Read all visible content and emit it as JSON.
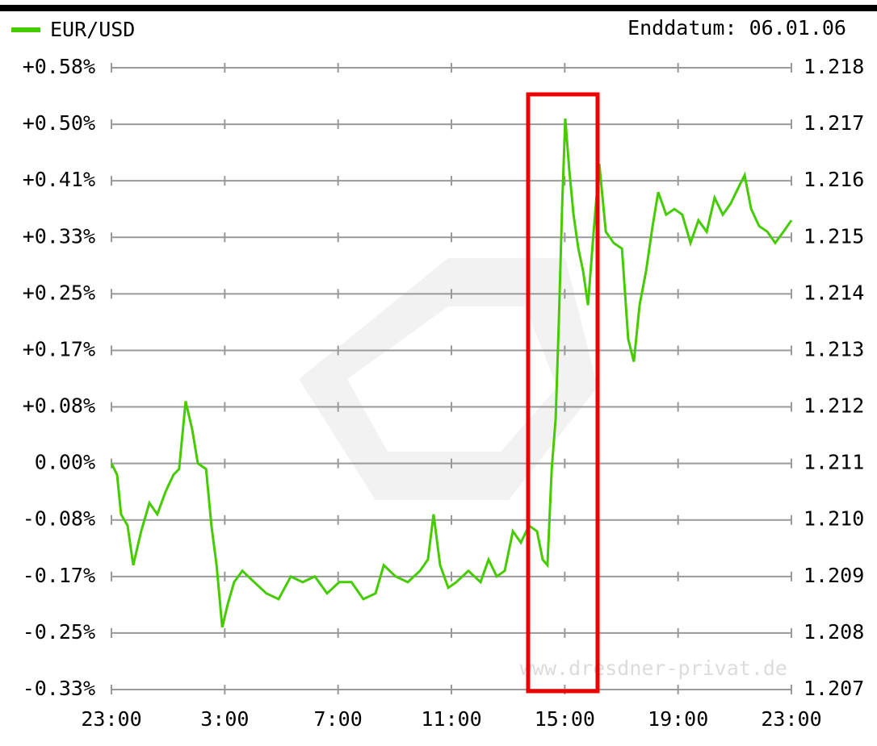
{
  "chart_data": {
    "type": "line",
    "annotations": [
      "Enddatum: 06.01.06",
      "www.dresdner-privat.de"
    ],
    "x": [
      0,
      0.2,
      0.34,
      0.57,
      0.77,
      1.05,
      1.34,
      1.62,
      1.91,
      2.19,
      2.39,
      2.62,
      2.85,
      3.05,
      3.34,
      3.53,
      3.71,
      3.91,
      4.1,
      4.33,
      4.62,
      5.04,
      5.47,
      5.9,
      6.33,
      6.75,
      7.18,
      7.61,
      8.04,
      8.47,
      8.89,
      9.32,
      9.61,
      10.03,
      10.46,
      10.89,
      11.17,
      11.37,
      11.6,
      11.89,
      12.17,
      12.6,
      13.03,
      13.31,
      13.6,
      13.88,
      14.17,
      14.45,
      14.74,
      15.02,
      15.22,
      15.39,
      15.54,
      15.68,
      15.79,
      15.91,
      16.02,
      16.16,
      16.31,
      16.48,
      16.65,
      16.82,
      17.02,
      17.22,
      17.45,
      17.73,
      18.02,
      18.24,
      18.44,
      18.64,
      18.87,
      19.1,
      19.3,
      19.58,
      19.87,
      20.15,
      20.44,
      20.72,
      21.01,
      21.29,
      21.58,
      21.86,
      22.15,
      22.35,
      22.58,
      22.86,
      23.15,
      23.43,
      23.72,
      24
    ],
    "series": [
      {
        "name": "EUR/USD",
        "color": "#44cc00",
        "values": [
          1.211,
          1.2108,
          1.2101,
          1.2099,
          1.2092,
          1.2098,
          1.2103,
          1.2101,
          1.2105,
          1.2108,
          1.2109,
          1.2121,
          1.2116,
          1.211,
          1.2109,
          1.2099,
          1.2092,
          1.2081,
          1.2085,
          1.2089,
          1.2091,
          1.2089,
          1.2087,
          1.2086,
          1.209,
          1.2089,
          1.209,
          1.2087,
          1.2089,
          1.2089,
          1.2086,
          1.2087,
          1.2092,
          1.209,
          1.2089,
          1.2091,
          1.2093,
          1.2101,
          1.2092,
          1.2088,
          1.2089,
          1.2091,
          1.2089,
          1.2093,
          1.209,
          1.2091,
          1.2098,
          1.2096,
          1.2099,
          1.2098,
          1.2093,
          1.2092,
          1.2109,
          1.2118,
          1.2135,
          1.2156,
          1.2171,
          1.2162,
          1.2154,
          1.2148,
          1.2144,
          1.2138,
          1.2151,
          1.2163,
          1.2151,
          1.2149,
          1.2148,
          1.2132,
          1.2128,
          1.2138,
          1.2144,
          1.2152,
          1.2158,
          1.2154,
          1.2155,
          1.2154,
          1.2149,
          1.2153,
          1.2151,
          1.2157,
          1.2154,
          1.2156,
          1.2159,
          1.2161,
          1.2155,
          1.2152,
          1.2151,
          1.2149,
          1.2151,
          1.2153
        ]
      }
    ],
    "xlim": [
      0,
      24
    ],
    "xticks": [
      {
        "value": 0,
        "label": "23:00"
      },
      {
        "value": 4,
        "label": "3:00"
      },
      {
        "value": 8,
        "label": "7:00"
      },
      {
        "value": 12,
        "label": "11:00"
      },
      {
        "value": 16,
        "label": "15:00"
      },
      {
        "value": 20,
        "label": "19:00"
      },
      {
        "value": 24,
        "label": "23:00"
      }
    ],
    "ylim": [
      1.207,
      1.218
    ],
    "yticks": [
      {
        "value": 1.218,
        "label": "+0.58%"
      },
      {
        "value": 1.217,
        "label": "+0.50%"
      },
      {
        "value": 1.216,
        "label": "+0.41%"
      },
      {
        "value": 1.215,
        "label": "+0.33%"
      },
      {
        "value": 1.214,
        "label": "+0.25%"
      },
      {
        "value": 1.213,
        "label": "+0.17%"
      },
      {
        "value": 1.212,
        "label": "+0.08%"
      },
      {
        "value": 1.211,
        "label": "0.00%"
      },
      {
        "value": 1.21,
        "label": "-0.08%"
      },
      {
        "value": 1.209,
        "label": "-0.17%"
      },
      {
        "value": 1.208,
        "label": "-0.25%"
      },
      {
        "value": 1.207,
        "label": "-0.33%"
      }
    ],
    "y2lim": [
      1.207,
      1.218
    ],
    "y2ticks": [
      1.218,
      1.217,
      1.216,
      1.215,
      1.214,
      1.213,
      1.212,
      1.211,
      {
        "value": 1.21,
        "label": "1.210"
      },
      1.209,
      1.208,
      1.207
    ],
    "grid": true
  }
}
